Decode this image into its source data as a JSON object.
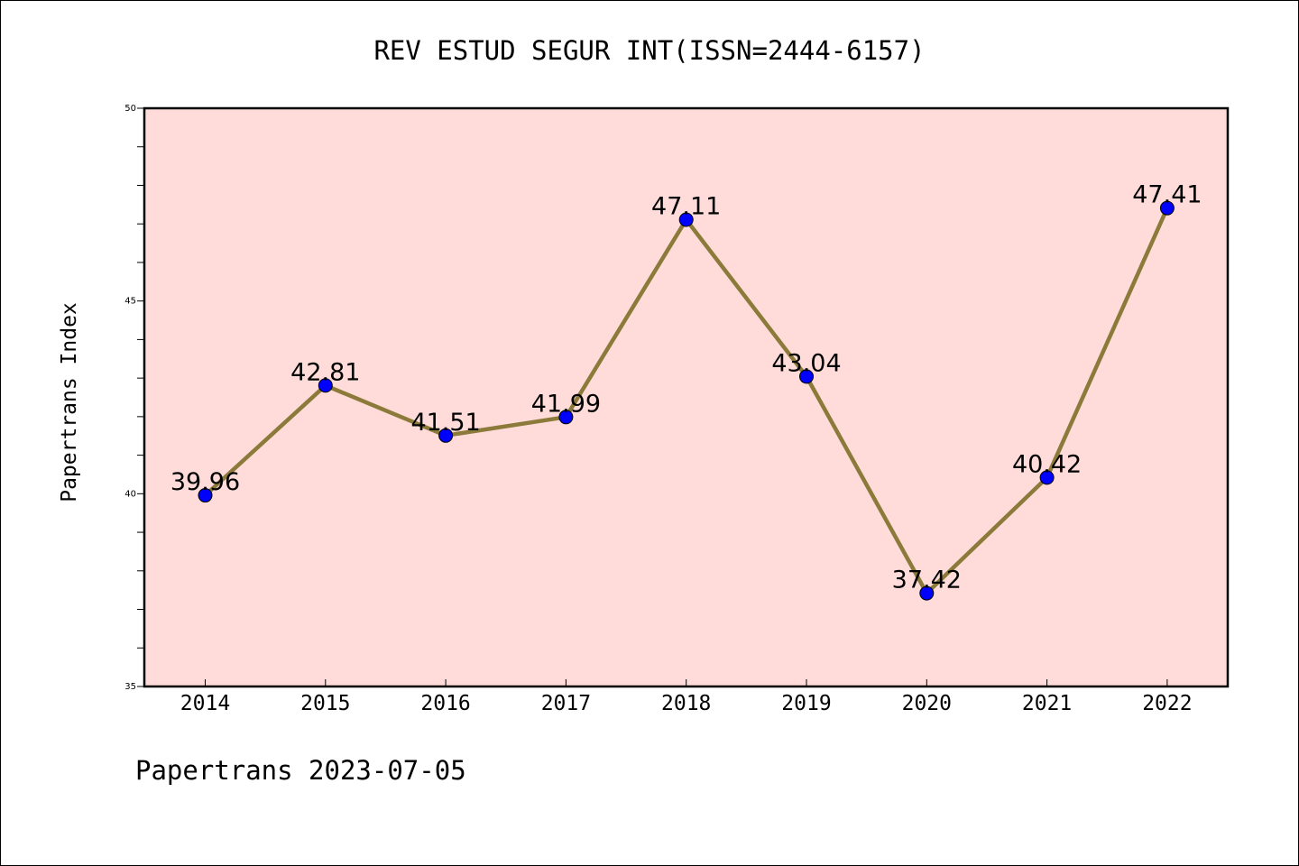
{
  "chart_data": {
    "type": "line",
    "title": "REV ESTUD SEGUR INT(ISSN=2444-6157)",
    "xlabel": "",
    "ylabel": "Papertrans Index",
    "x": [
      "2014",
      "2015",
      "2016",
      "2017",
      "2018",
      "2019",
      "2020",
      "2021",
      "2022"
    ],
    "series": [
      {
        "values": [
          39.96,
          42.81,
          41.51,
          41.99,
          47.11,
          43.04,
          37.42,
          40.42,
          47.41
        ]
      }
    ],
    "data_labels": [
      "39.96",
      "42.81",
      "41.51",
      "41.99",
      "47.11",
      "43.04",
      "37.42",
      "40.42",
      "47.41"
    ],
    "ylim": [
      35,
      50
    ],
    "y_major_ticks": [
      35,
      40,
      45,
      50
    ],
    "y_minor_step": 1,
    "grid": false,
    "plot_background": "#ffdcd9",
    "line_color": "#8b7a3a",
    "marker_color": "#0000ff"
  },
  "footer": {
    "text": "Papertrans 2023-07-05"
  }
}
